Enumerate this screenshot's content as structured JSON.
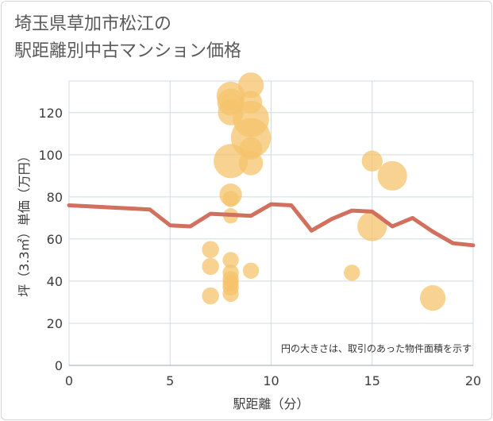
{
  "chart_data": {
    "type": "scatter",
    "title": "埼玉県草加市松江の\n駅距離別中古マンション価格",
    "xlabel": "駅距離（分）",
    "ylabel": "坪（3.3㎡）単価（万円）",
    "note": "円の大きさは、取引のあった物件面積を示す",
    "xlim": [
      0,
      20
    ],
    "ylim": [
      0,
      135
    ],
    "xticks": [
      0,
      5,
      10,
      15,
      20
    ],
    "yticks": [
      0,
      20,
      40,
      60,
      80,
      100,
      120
    ],
    "grid": true,
    "colors": {
      "bubble": "#f5c36b",
      "line": "#d1705e",
      "grid": "#cfdbe4"
    },
    "series": [
      {
        "kind": "bubble",
        "points": [
          {
            "x": 7,
            "y": 55,
            "size": 20
          },
          {
            "x": 7,
            "y": 47,
            "size": 20
          },
          {
            "x": 7,
            "y": 33,
            "size": 20
          },
          {
            "x": 8,
            "y": 128,
            "size": 55
          },
          {
            "x": 8,
            "y": 125,
            "size": 50
          },
          {
            "x": 8,
            "y": 120,
            "size": 45
          },
          {
            "x": 8,
            "y": 97,
            "size": 80
          },
          {
            "x": 8,
            "y": 81,
            "size": 35
          },
          {
            "x": 8,
            "y": 79,
            "size": 18
          },
          {
            "x": 8,
            "y": 71,
            "size": 16
          },
          {
            "x": 8,
            "y": 50,
            "size": 18
          },
          {
            "x": 8,
            "y": 44,
            "size": 18
          },
          {
            "x": 8,
            "y": 41,
            "size": 18
          },
          {
            "x": 8,
            "y": 39,
            "size": 18
          },
          {
            "x": 8,
            "y": 37,
            "size": 18
          },
          {
            "x": 8,
            "y": 34,
            "size": 18
          },
          {
            "x": 9,
            "y": 133,
            "size": 45
          },
          {
            "x": 9,
            "y": 125,
            "size": 35
          },
          {
            "x": 9,
            "y": 117,
            "size": 90
          },
          {
            "x": 9,
            "y": 108,
            "size": 110
          },
          {
            "x": 9,
            "y": 103,
            "size": 35
          },
          {
            "x": 9,
            "y": 96,
            "size": 40
          },
          {
            "x": 9,
            "y": 45,
            "size": 18
          },
          {
            "x": 14,
            "y": 44,
            "size": 18
          },
          {
            "x": 15,
            "y": 97,
            "size": 30
          },
          {
            "x": 15,
            "y": 66,
            "size": 60
          },
          {
            "x": 16,
            "y": 90,
            "size": 60
          },
          {
            "x": 18,
            "y": 32,
            "size": 45
          }
        ]
      },
      {
        "kind": "line",
        "x": [
          0,
          1,
          2,
          3,
          4,
          5,
          6,
          7,
          8,
          9,
          10,
          11,
          12,
          13,
          14,
          15,
          16,
          17,
          18,
          19,
          20
        ],
        "values": [
          76,
          75.5,
          75,
          74.5,
          74,
          66.5,
          66,
          72,
          71.5,
          71,
          76.5,
          76,
          64,
          69.5,
          73.5,
          73,
          66,
          70,
          63.5,
          58,
          57
        ]
      }
    ]
  }
}
